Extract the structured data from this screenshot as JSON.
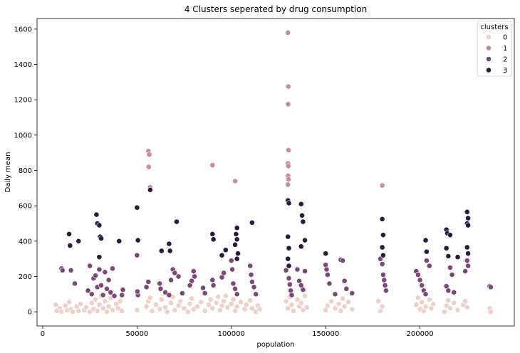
{
  "chart_data": {
    "type": "scatter",
    "title": "4 Clusters seperated by drug consumption",
    "xlabel": "population",
    "ylabel": "Daily mean",
    "xlim": [
      -3000,
      250000
    ],
    "ylim": [
      -80,
      1660
    ],
    "xticks": [
      0,
      50000,
      100000,
      150000,
      200000
    ],
    "yticks": [
      0,
      200,
      400,
      600,
      800,
      1000,
      1200,
      1400,
      1600
    ],
    "grid": false,
    "legend": {
      "title": "clusters",
      "placement": "top-right",
      "entries": [
        "0",
        "1",
        "2",
        "3"
      ]
    },
    "colors": {
      "0": "#efd0c8",
      "1": "#c78a9f",
      "2": "#7d4879",
      "3": "#2b1a3f"
    },
    "series": [
      {
        "name": "0",
        "points": [
          [
            7000,
            40
          ],
          [
            7500,
            5
          ],
          [
            9000,
            20
          ],
          [
            10000,
            0
          ],
          [
            12000,
            35
          ],
          [
            13000,
            10
          ],
          [
            14000,
            55
          ],
          [
            15000,
            15
          ],
          [
            16000,
            0
          ],
          [
            18000,
            30
          ],
          [
            19000,
            5
          ],
          [
            20000,
            45
          ],
          [
            22000,
            10
          ],
          [
            23000,
            25
          ],
          [
            25000,
            0
          ],
          [
            26000,
            50
          ],
          [
            27000,
            15
          ],
          [
            28000,
            70
          ],
          [
            29000,
            5
          ],
          [
            30000,
            40
          ],
          [
            31000,
            90
          ],
          [
            32000,
            20
          ],
          [
            33000,
            60
          ],
          [
            34000,
            0
          ],
          [
            35000,
            30
          ],
          [
            36000,
            80
          ],
          [
            37000,
            10
          ],
          [
            39000,
            45
          ],
          [
            40000,
            20
          ],
          [
            41000,
            60
          ],
          [
            42000,
            5
          ],
          [
            50000,
            10
          ],
          [
            55000,
            30
          ],
          [
            56000,
            60
          ],
          [
            57000,
            80
          ],
          [
            58000,
            5
          ],
          [
            60000,
            40
          ],
          [
            62000,
            15
          ],
          [
            63000,
            70
          ],
          [
            65000,
            25
          ],
          [
            66000,
            0
          ],
          [
            68000,
            50
          ],
          [
            69000,
            85
          ],
          [
            70000,
            10
          ],
          [
            72000,
            35
          ],
          [
            73000,
            60
          ],
          [
            75000,
            20
          ],
          [
            77000,
            0
          ],
          [
            78000,
            45
          ],
          [
            79000,
            75
          ],
          [
            80000,
            15
          ],
          [
            82000,
            30
          ],
          [
            84000,
            55
          ],
          [
            86000,
            5
          ],
          [
            88000,
            40
          ],
          [
            89000,
            70
          ],
          [
            90000,
            20
          ],
          [
            92000,
            50
          ],
          [
            93000,
            85
          ],
          [
            94000,
            10
          ],
          [
            95000,
            35
          ],
          [
            96000,
            60
          ],
          [
            97000,
            90
          ],
          [
            98000,
            25
          ],
          [
            100000,
            45
          ],
          [
            101000,
            70
          ],
          [
            102000,
            5
          ],
          [
            103000,
            30
          ],
          [
            105000,
            55
          ],
          [
            107000,
            15
          ],
          [
            108000,
            40
          ],
          [
            110000,
            65
          ],
          [
            111000,
            20
          ],
          [
            113000,
            0
          ],
          [
            114000,
            35
          ],
          [
            115000,
            15
          ],
          [
            129000,
            60
          ],
          [
            130000,
            20
          ],
          [
            131000,
            85
          ],
          [
            132000,
            40
          ],
          [
            133000,
            5
          ],
          [
            135000,
            70
          ],
          [
            136000,
            30
          ],
          [
            137000,
            50
          ],
          [
            138000,
            10
          ],
          [
            139000,
            90
          ],
          [
            140000,
            25
          ],
          [
            150000,
            10
          ],
          [
            151000,
            35
          ],
          [
            153000,
            60
          ],
          [
            155000,
            20
          ],
          [
            157000,
            45
          ],
          [
            158000,
            5
          ],
          [
            159000,
            75
          ],
          [
            160000,
            30
          ],
          [
            162000,
            55
          ],
          [
            164000,
            15
          ],
          [
            178000,
            60
          ],
          [
            179000,
            5
          ],
          [
            180000,
            30
          ],
          [
            198000,
            40
          ],
          [
            199000,
            80
          ],
          [
            200000,
            15
          ],
          [
            201000,
            55
          ],
          [
            202000,
            5
          ],
          [
            203000,
            30
          ],
          [
            205000,
            70
          ],
          [
            206000,
            20
          ],
          [
            207000,
            45
          ],
          [
            213000,
            0
          ],
          [
            214000,
            35
          ],
          [
            215000,
            65
          ],
          [
            216000,
            20
          ],
          [
            218000,
            50
          ],
          [
            220000,
            10
          ],
          [
            223000,
            40
          ],
          [
            224000,
            60
          ],
          [
            225000,
            25
          ],
          [
            237000,
            20
          ],
          [
            237500,
            0
          ]
        ]
      },
      {
        "name": "1",
        "points": [
          [
            56000,
            910
          ],
          [
            56500,
            890
          ],
          [
            56200,
            820
          ],
          [
            57000,
            705
          ],
          [
            90000,
            830
          ],
          [
            102000,
            740
          ],
          [
            130000,
            1580
          ],
          [
            130200,
            1275
          ],
          [
            130100,
            1175
          ],
          [
            130300,
            915
          ],
          [
            130000,
            840
          ],
          [
            130200,
            825
          ],
          [
            130100,
            770
          ],
          [
            130300,
            750
          ],
          [
            130000,
            720
          ],
          [
            180000,
            715
          ]
        ]
      },
      {
        "name": "2",
        "points": [
          [
            10000,
            245
          ],
          [
            10500,
            235
          ],
          [
            15000,
            235
          ],
          [
            17000,
            160
          ],
          [
            24000,
            120
          ],
          [
            25000,
            260
          ],
          [
            26000,
            100
          ],
          [
            27000,
            190
          ],
          [
            28000,
            205
          ],
          [
            29000,
            140
          ],
          [
            30000,
            240
          ],
          [
            31000,
            150
          ],
          [
            32000,
            95
          ],
          [
            33000,
            225
          ],
          [
            34000,
            130
          ],
          [
            35000,
            180
          ],
          [
            36000,
            110
          ],
          [
            37000,
            245
          ],
          [
            38000,
            90
          ],
          [
            42000,
            95
          ],
          [
            42500,
            125
          ],
          [
            50000,
            320
          ],
          [
            50500,
            95
          ],
          [
            50200,
            115
          ],
          [
            55000,
            140
          ],
          [
            56000,
            170
          ],
          [
            62000,
            160
          ],
          [
            62500,
            130
          ],
          [
            65000,
            110
          ],
          [
            67000,
            95
          ],
          [
            68000,
            180
          ],
          [
            69000,
            240
          ],
          [
            70000,
            220
          ],
          [
            72000,
            200
          ],
          [
            74000,
            105
          ],
          [
            78000,
            150
          ],
          [
            79000,
            175
          ],
          [
            80000,
            230
          ],
          [
            80500,
            200
          ],
          [
            85000,
            135
          ],
          [
            86000,
            105
          ],
          [
            90000,
            180
          ],
          [
            90500,
            150
          ],
          [
            95000,
            195
          ],
          [
            96000,
            220
          ],
          [
            100000,
            290
          ],
          [
            100500,
            240
          ],
          [
            101000,
            160
          ],
          [
            102000,
            130
          ],
          [
            103000,
            100
          ],
          [
            110000,
            260
          ],
          [
            110500,
            210
          ],
          [
            111000,
            170
          ],
          [
            112000,
            140
          ],
          [
            113000,
            100
          ],
          [
            129000,
            235
          ],
          [
            130000,
            300
          ],
          [
            130500,
            190
          ],
          [
            131000,
            155
          ],
          [
            131500,
            120
          ],
          [
            132000,
            95
          ],
          [
            135000,
            240
          ],
          [
            136000,
            175
          ],
          [
            137000,
            150
          ],
          [
            138000,
            125
          ],
          [
            139000,
            230
          ],
          [
            150000,
            265
          ],
          [
            150500,
            240
          ],
          [
            151000,
            210
          ],
          [
            152000,
            160
          ],
          [
            155000,
            100
          ],
          [
            158000,
            295
          ],
          [
            159000,
            290
          ],
          [
            160000,
            175
          ],
          [
            161000,
            130
          ],
          [
            164000,
            105
          ],
          [
            179000,
            300
          ],
          [
            180000,
            270
          ],
          [
            180500,
            210
          ],
          [
            181000,
            180
          ],
          [
            181500,
            150
          ],
          [
            182000,
            120
          ],
          [
            198000,
            230
          ],
          [
            199000,
            210
          ],
          [
            200000,
            180
          ],
          [
            201000,
            150
          ],
          [
            202000,
            120
          ],
          [
            203000,
            100
          ],
          [
            203500,
            290
          ],
          [
            205000,
            260
          ],
          [
            214000,
            145
          ],
          [
            215000,
            120
          ],
          [
            216000,
            250
          ],
          [
            217000,
            210
          ],
          [
            218000,
            110
          ],
          [
            224000,
            230
          ],
          [
            225000,
            290
          ],
          [
            225500,
            260
          ],
          [
            237000,
            145
          ],
          [
            237500,
            140
          ]
        ]
      },
      {
        "name": "3",
        "points": [
          [
            14000,
            440
          ],
          [
            14500,
            375
          ],
          [
            19000,
            400
          ],
          [
            28500,
            550
          ],
          [
            29000,
            500
          ],
          [
            30000,
            490
          ],
          [
            30500,
            425
          ],
          [
            31000,
            415
          ],
          [
            30000,
            310
          ],
          [
            40500,
            400
          ],
          [
            50000,
            590
          ],
          [
            50500,
            405
          ],
          [
            63000,
            345
          ],
          [
            67000,
            385
          ],
          [
            67500,
            345
          ],
          [
            57000,
            690
          ],
          [
            71000,
            510
          ],
          [
            90000,
            440
          ],
          [
            90500,
            410
          ],
          [
            97000,
            350
          ],
          [
            95000,
            320
          ],
          [
            103000,
            475
          ],
          [
            102500,
            440
          ],
          [
            103000,
            410
          ],
          [
            102000,
            380
          ],
          [
            103500,
            330
          ],
          [
            103000,
            300
          ],
          [
            111000,
            505
          ],
          [
            130000,
            630
          ],
          [
            130500,
            615
          ],
          [
            130000,
            425
          ],
          [
            130500,
            360
          ],
          [
            130000,
            300
          ],
          [
            130500,
            260
          ],
          [
            137000,
            610
          ],
          [
            137500,
            545
          ],
          [
            138000,
            510
          ],
          [
            139000,
            405
          ],
          [
            137000,
            370
          ],
          [
            150000,
            330
          ],
          [
            180000,
            525
          ],
          [
            180500,
            435
          ],
          [
            180000,
            365
          ],
          [
            180500,
            320
          ],
          [
            203000,
            405
          ],
          [
            203500,
            340
          ],
          [
            214000,
            465
          ],
          [
            214500,
            445
          ],
          [
            216000,
            435
          ],
          [
            214000,
            360
          ],
          [
            215000,
            315
          ],
          [
            220000,
            310
          ],
          [
            225000,
            565
          ],
          [
            225500,
            530
          ],
          [
            225000,
            500
          ],
          [
            225500,
            490
          ],
          [
            225000,
            365
          ],
          [
            225500,
            330
          ]
        ]
      }
    ]
  }
}
